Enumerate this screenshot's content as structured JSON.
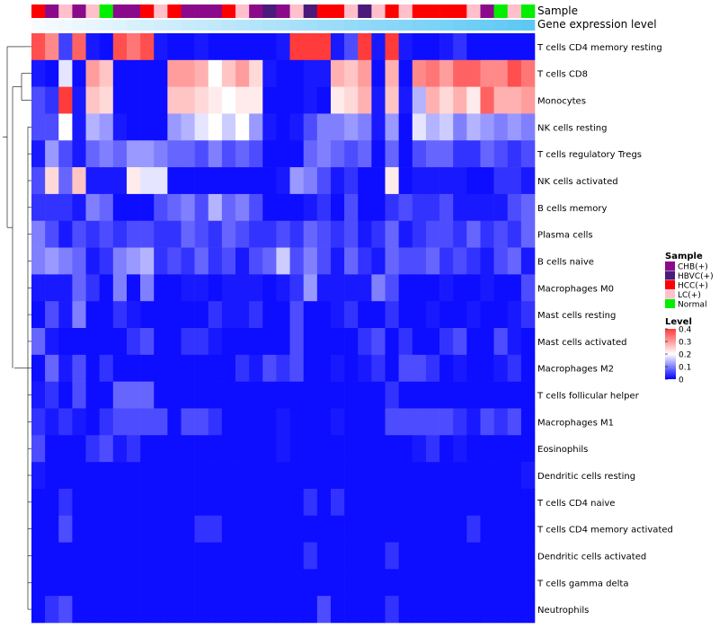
{
  "chart_data": {
    "type": "heatmap",
    "title": "",
    "xlabel": "",
    "ylabel": "",
    "annotation_tracks": [
      "Sample",
      "Gene expression level"
    ],
    "sample_groups": [
      {
        "name": "CHB(+)",
        "color": "#8B0A8B"
      },
      {
        "name": "HBVC(+)",
        "color": "#4B1A7A"
      },
      {
        "name": "HCC(+)",
        "color": "#FF0000"
      },
      {
        "name": "LC(+)",
        "color": "#FFC0CB"
      },
      {
        "name": "Normal",
        "color": "#00EE00"
      }
    ],
    "sample_annotation": [
      "HCC(+)",
      "CHB(+)",
      "LC(+)",
      "CHB(+)",
      "LC(+)",
      "Normal",
      "CHB(+)",
      "CHB(+)",
      "HCC(+)",
      "LC(+)",
      "HCC(+)",
      "CHB(+)",
      "CHB(+)",
      "CHB(+)",
      "HCC(+)",
      "LC(+)",
      "CHB(+)",
      "HBVC(+)",
      "CHB(+)",
      "LC(+)",
      "HBVC(+)",
      "HCC(+)",
      "HCC(+)",
      "LC(+)",
      "HBVC(+)",
      "LC(+)",
      "HCC(+)",
      "LC(+)",
      "HCC(+)",
      "HCC(+)",
      "HCC(+)",
      "HCC(+)",
      "LC(+)",
      "CHB(+)",
      "Normal",
      "LC(+)",
      "Normal"
    ],
    "expression_level_gradient": [
      "#f7fbff",
      "#5ec8f5"
    ],
    "rows": [
      "T cells CD4 memory resting",
      "T cells CD8",
      "Monocytes",
      "NK cells resting",
      "T cells regulatory  Tregs",
      "NK cells activated",
      "B cells memory",
      "Plasma cells",
      "B cells naive",
      "Macrophages M0",
      "Mast cells resting",
      "Mast cells activated",
      "Macrophages M2",
      "T cells follicular helper",
      "Macrophages M1",
      "Eosinophils",
      "Dendritic cells resting",
      "T cells CD4 naive",
      "T cells CD4 memory activated",
      "Dendritic cells activated",
      "T cells gamma delta",
      "Neutrophils"
    ],
    "values": [
      [
        0.38,
        0.32,
        0.05,
        0.36,
        0.02,
        0.01,
        0.38,
        0.34,
        0.38,
        0.02,
        0.01,
        0.01,
        0.02,
        0.01,
        0.01,
        0.01,
        0.01,
        0.01,
        0.02,
        0.4,
        0.4,
        0.4,
        0.02,
        0.06,
        0.4,
        0.02,
        0.4,
        0.02,
        0.01,
        0.01,
        0.02,
        0.04,
        0.01,
        0.01,
        0.01,
        0.01,
        0.01
      ],
      [
        0.02,
        0.01,
        0.18,
        0.01,
        0.3,
        0.26,
        0.01,
        0.01,
        0.01,
        0.01,
        0.3,
        0.3,
        0.28,
        0.2,
        0.26,
        0.3,
        0.24,
        0.02,
        0.01,
        0.01,
        0.02,
        0.02,
        0.28,
        0.26,
        0.3,
        0.01,
        0.28,
        0.01,
        0.32,
        0.34,
        0.3,
        0.36,
        0.36,
        0.32,
        0.32,
        0.38,
        0.34
      ],
      [
        0.06,
        0.04,
        0.4,
        0.02,
        0.26,
        0.24,
        0.01,
        0.01,
        0.01,
        0.01,
        0.26,
        0.26,
        0.24,
        0.22,
        0.2,
        0.22,
        0.22,
        0.01,
        0.01,
        0.01,
        0.02,
        0.01,
        0.22,
        0.24,
        0.28,
        0.02,
        0.26,
        0.02,
        0.14,
        0.28,
        0.24,
        0.28,
        0.22,
        0.36,
        0.28,
        0.28,
        0.3
      ],
      [
        0.06,
        0.06,
        0.2,
        0.02,
        0.14,
        0.12,
        0.02,
        0.01,
        0.01,
        0.01,
        0.12,
        0.14,
        0.18,
        0.2,
        0.16,
        0.2,
        0.12,
        0.02,
        0.01,
        0.02,
        0.06,
        0.1,
        0.1,
        0.12,
        0.1,
        0.02,
        0.12,
        0.01,
        0.18,
        0.14,
        0.16,
        0.1,
        0.14,
        0.12,
        0.1,
        0.12,
        0.1
      ],
      [
        0.02,
        0.12,
        0.06,
        0.02,
        0.08,
        0.1,
        0.08,
        0.12,
        0.12,
        0.1,
        0.08,
        0.08,
        0.06,
        0.1,
        0.06,
        0.08,
        0.06,
        0.01,
        0.01,
        0.01,
        0.08,
        0.1,
        0.08,
        0.06,
        0.08,
        0.01,
        0.08,
        0.01,
        0.06,
        0.08,
        0.08,
        0.04,
        0.04,
        0.08,
        0.06,
        0.04,
        0.06
      ],
      [
        0.06,
        0.24,
        0.08,
        0.26,
        0.02,
        0.02,
        0.02,
        0.22,
        0.18,
        0.18,
        0.01,
        0.01,
        0.01,
        0.01,
        0.01,
        0.01,
        0.01,
        0.01,
        0.02,
        0.12,
        0.1,
        0.06,
        0.02,
        0.04,
        0.01,
        0.01,
        0.22,
        0.01,
        0.02,
        0.02,
        0.02,
        0.02,
        0.01,
        0.01,
        0.04,
        0.04,
        0.02
      ],
      [
        0.04,
        0.04,
        0.04,
        0.02,
        0.1,
        0.08,
        0.01,
        0.01,
        0.01,
        0.06,
        0.08,
        0.1,
        0.06,
        0.14,
        0.08,
        0.1,
        0.06,
        0.01,
        0.01,
        0.01,
        0.02,
        0.04,
        0.01,
        0.06,
        0.01,
        0.01,
        0.04,
        0.06,
        0.04,
        0.04,
        0.06,
        0.02,
        0.02,
        0.02,
        0.02,
        0.06,
        0.08
      ],
      [
        0.1,
        0.06,
        0.02,
        0.06,
        0.04,
        0.06,
        0.04,
        0.06,
        0.06,
        0.04,
        0.04,
        0.08,
        0.06,
        0.04,
        0.08,
        0.06,
        0.04,
        0.04,
        0.06,
        0.04,
        0.08,
        0.06,
        0.04,
        0.06,
        0.02,
        0.04,
        0.08,
        0.02,
        0.04,
        0.06,
        0.06,
        0.04,
        0.08,
        0.04,
        0.06,
        0.04,
        0.08
      ],
      [
        0.1,
        0.12,
        0.1,
        0.08,
        0.02,
        0.04,
        0.1,
        0.12,
        0.14,
        0.04,
        0.06,
        0.04,
        0.08,
        0.04,
        0.06,
        0.02,
        0.06,
        0.08,
        0.16,
        0.06,
        0.1,
        0.06,
        0.02,
        0.08,
        0.04,
        0.02,
        0.08,
        0.06,
        0.06,
        0.08,
        0.04,
        0.06,
        0.04,
        0.02,
        0.06,
        0.08,
        0.02
      ],
      [
        0.02,
        0.02,
        0.02,
        0.08,
        0.04,
        0.01,
        0.1,
        0.01,
        0.1,
        0.01,
        0.01,
        0.02,
        0.02,
        0.01,
        0.02,
        0.02,
        0.02,
        0.01,
        0.02,
        0.04,
        0.12,
        0.02,
        0.02,
        0.02,
        0.02,
        0.1,
        0.06,
        0.01,
        0.01,
        0.01,
        0.02,
        0.01,
        0.01,
        0.02,
        0.01,
        0.01,
        0.06
      ],
      [
        0.01,
        0.06,
        0.02,
        0.1,
        0.01,
        0.01,
        0.04,
        0.02,
        0.01,
        0.01,
        0.01,
        0.01,
        0.01,
        0.04,
        0.02,
        0.02,
        0.04,
        0.01,
        0.01,
        0.06,
        0.01,
        0.01,
        0.02,
        0.04,
        0.01,
        0.01,
        0.04,
        0.01,
        0.01,
        0.02,
        0.01,
        0.01,
        0.02,
        0.01,
        0.01,
        0.02,
        0.04
      ],
      [
        0.08,
        0.02,
        0.01,
        0.01,
        0.01,
        0.01,
        0.01,
        0.04,
        0.06,
        0.01,
        0.01,
        0.04,
        0.04,
        0.02,
        0.01,
        0.01,
        0.01,
        0.01,
        0.01,
        0.06,
        0.01,
        0.01,
        0.01,
        0.01,
        0.04,
        0.06,
        0.01,
        0.04,
        0.01,
        0.01,
        0.04,
        0.06,
        0.01,
        0.01,
        0.06,
        0.02,
        0.01
      ],
      [
        0.01,
        0.08,
        0.02,
        0.06,
        0.01,
        0.04,
        0.01,
        0.01,
        0.01,
        0.01,
        0.01,
        0.01,
        0.01,
        0.01,
        0.01,
        0.04,
        0.02,
        0.06,
        0.04,
        0.06,
        0.01,
        0.01,
        0.02,
        0.01,
        0.02,
        0.04,
        0.01,
        0.06,
        0.06,
        0.04,
        0.01,
        0.02,
        0.01,
        0.01,
        0.02,
        0.04,
        0.01
      ],
      [
        0.02,
        0.04,
        0.01,
        0.06,
        0.01,
        0.01,
        0.08,
        0.08,
        0.08,
        0.01,
        0.01,
        0.01,
        0.01,
        0.01,
        0.01,
        0.01,
        0.01,
        0.01,
        0.01,
        0.01,
        0.01,
        0.01,
        0.01,
        0.01,
        0.01,
        0.01,
        0.04,
        0.01,
        0.01,
        0.01,
        0.01,
        0.01,
        0.01,
        0.01,
        0.01,
        0.01,
        0.01
      ],
      [
        0.04,
        0.02,
        0.04,
        0.02,
        0.01,
        0.04,
        0.06,
        0.06,
        0.06,
        0.06,
        0.01,
        0.06,
        0.06,
        0.04,
        0.01,
        0.01,
        0.01,
        0.01,
        0.02,
        0.01,
        0.01,
        0.01,
        0.02,
        0.01,
        0.01,
        0.01,
        0.06,
        0.06,
        0.06,
        0.06,
        0.06,
        0.04,
        0.02,
        0.06,
        0.04,
        0.06,
        0.01
      ],
      [
        0.06,
        0.01,
        0.01,
        0.01,
        0.04,
        0.06,
        0.02,
        0.04,
        0.01,
        0.01,
        0.01,
        0.01,
        0.01,
        0.01,
        0.01,
        0.01,
        0.01,
        0.01,
        0.02,
        0.01,
        0.01,
        0.01,
        0.01,
        0.01,
        0.01,
        0.01,
        0.01,
        0.01,
        0.02,
        0.04,
        0.01,
        0.02,
        0.01,
        0.01,
        0.01,
        0.01,
        0.01
      ],
      [
        0.02,
        0.01,
        0.01,
        0.01,
        0.01,
        0.01,
        0.01,
        0.01,
        0.01,
        0.01,
        0.01,
        0.01,
        0.01,
        0.01,
        0.01,
        0.01,
        0.01,
        0.01,
        0.01,
        0.01,
        0.01,
        0.01,
        0.01,
        0.01,
        0.01,
        0.01,
        0.01,
        0.01,
        0.01,
        0.01,
        0.01,
        0.01,
        0.01,
        0.01,
        0.01,
        0.01,
        0.02
      ],
      [
        0.01,
        0.01,
        0.04,
        0.01,
        0.01,
        0.01,
        0.01,
        0.01,
        0.01,
        0.01,
        0.01,
        0.01,
        0.01,
        0.01,
        0.01,
        0.01,
        0.01,
        0.01,
        0.01,
        0.01,
        0.04,
        0.01,
        0.04,
        0.01,
        0.01,
        0.01,
        0.01,
        0.01,
        0.01,
        0.01,
        0.01,
        0.01,
        0.01,
        0.01,
        0.01,
        0.01,
        0.01
      ],
      [
        0.01,
        0.01,
        0.06,
        0.01,
        0.01,
        0.01,
        0.01,
        0.01,
        0.01,
        0.01,
        0.01,
        0.01,
        0.04,
        0.04,
        0.01,
        0.01,
        0.01,
        0.01,
        0.01,
        0.01,
        0.01,
        0.01,
        0.01,
        0.01,
        0.01,
        0.01,
        0.01,
        0.01,
        0.01,
        0.01,
        0.01,
        0.01,
        0.04,
        0.01,
        0.01,
        0.01,
        0.01
      ],
      [
        0.01,
        0.01,
        0.01,
        0.01,
        0.01,
        0.01,
        0.01,
        0.01,
        0.01,
        0.01,
        0.01,
        0.01,
        0.01,
        0.01,
        0.01,
        0.01,
        0.01,
        0.01,
        0.01,
        0.01,
        0.04,
        0.01,
        0.01,
        0.01,
        0.01,
        0.01,
        0.04,
        0.01,
        0.01,
        0.01,
        0.01,
        0.01,
        0.01,
        0.01,
        0.01,
        0.01,
        0.01
      ],
      [
        0.01,
        0.01,
        0.01,
        0.01,
        0.01,
        0.01,
        0.01,
        0.01,
        0.01,
        0.01,
        0.01,
        0.01,
        0.01,
        0.01,
        0.01,
        0.01,
        0.01,
        0.01,
        0.01,
        0.01,
        0.01,
        0.01,
        0.01,
        0.01,
        0.01,
        0.01,
        0.01,
        0.01,
        0.01,
        0.01,
        0.01,
        0.01,
        0.01,
        0.01,
        0.01,
        0.01,
        0.01
      ],
      [
        0.01,
        0.04,
        0.06,
        0.01,
        0.01,
        0.01,
        0.01,
        0.01,
        0.01,
        0.01,
        0.01,
        0.01,
        0.01,
        0.01,
        0.01,
        0.01,
        0.01,
        0.01,
        0.01,
        0.01,
        0.01,
        0.06,
        0.01,
        0.01,
        0.01,
        0.01,
        0.04,
        0.01,
        0.01,
        0.01,
        0.01,
        0.01,
        0.01,
        0.01,
        0.01,
        0.01,
        0.01
      ]
    ],
    "legend": {
      "sample_title": "Sample",
      "level_title": "Level",
      "level_ticks": [
        "0.4",
        "0.3",
        "0.2",
        "0.1",
        "0"
      ],
      "level_range": [
        0,
        0.4
      ],
      "colors": {
        "low": "#0000FF",
        "mid": "#FFFFFF",
        "high": "#FF3B3B"
      }
    }
  }
}
